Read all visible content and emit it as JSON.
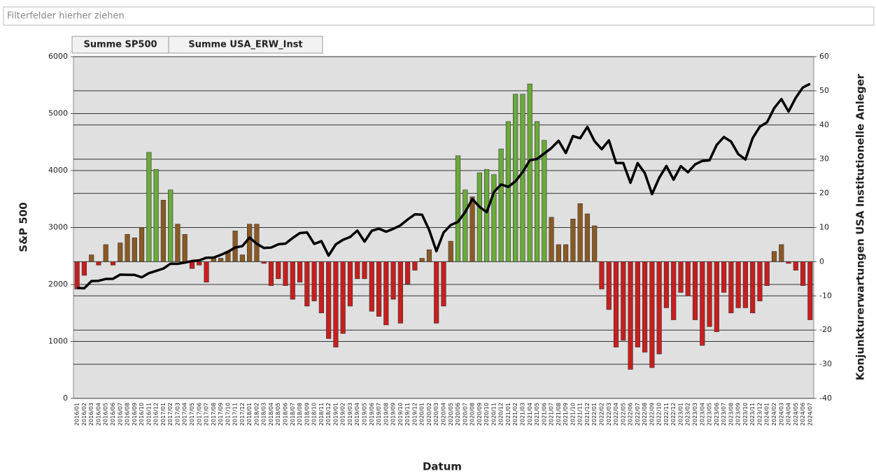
{
  "filter_label": "Filterfelder hierher ziehen",
  "chart_data": {
    "type": "bar_line",
    "field_buttons": [
      "Summe SP500",
      "Summe USA_ERW_Inst"
    ],
    "xlabel": "Datum",
    "ylabel": "S&P 500",
    "y2label": "Konjunkturerwartungen USA Institutionelle Anleger",
    "categories": [
      "2016/01",
      "2016/02",
      "2016/03",
      "2016/04",
      "2016/05",
      "2016/06",
      "2016/07",
      "2016/08",
      "2016/09",
      "2016/10",
      "2016/11",
      "2016/12",
      "2017/01",
      "2017/02",
      "2017/03",
      "2017/04",
      "2017/05",
      "2017/06",
      "2017/07",
      "2017/08",
      "2017/09",
      "2017/10",
      "2017/11",
      "2017/12",
      "2018/01",
      "2018/02",
      "2018/03",
      "2018/04",
      "2018/05",
      "2018/06",
      "2018/07",
      "2018/08",
      "2018/09",
      "2018/10",
      "2018/11",
      "2018/12",
      "2019/01",
      "2019/02",
      "2019/03",
      "2019/04",
      "2019/05",
      "2019/06",
      "2019/07",
      "2019/08",
      "2019/09",
      "2019/10",
      "2019/11",
      "2019/12",
      "2020/01",
      "2020/02",
      "2020/03",
      "2020/04",
      "2020/05",
      "2020/06",
      "2020/07",
      "2020/08",
      "2020/09",
      "2020/10",
      "2020/11",
      "2020/12",
      "2021/01",
      "2021/02",
      "2021/03",
      "2021/04",
      "2021/05",
      "2021/06",
      "2021/07",
      "2021/08",
      "2021/09",
      "2021/10",
      "2021/11",
      "2021/12",
      "2022/01",
      "2022/02",
      "2022/03",
      "2022/04",
      "2022/05",
      "2022/06",
      "2022/07",
      "2022/08",
      "2022/09",
      "2022/10",
      "2022/11",
      "2022/12",
      "2023/01",
      "2023/02",
      "2023/03",
      "2023/04",
      "2023/05",
      "2023/06",
      "2023/07",
      "2023/08",
      "2023/09",
      "2023/10",
      "2023/11",
      "2023/12",
      "2024/01",
      "2024/02",
      "2024/03",
      "2024/04",
      "2024/05",
      "2024/06",
      "2024/07"
    ],
    "series": [
      {
        "name": "Summe SP500",
        "type": "line",
        "color": "#000000",
        "values": [
          1940,
          1932,
          2060,
          2065,
          2097,
          2099,
          2174,
          2171,
          2168,
          2126,
          2199,
          2239,
          2279,
          2364,
          2363,
          2384,
          2412,
          2423,
          2470,
          2472,
          2519,
          2575,
          2648,
          2674,
          2824,
          2714,
          2641,
          2648,
          2705,
          2718,
          2816,
          2902,
          2914,
          2712,
          2760,
          2507,
          2704,
          2784,
          2834,
          2946,
          2752,
          2942,
          2980,
          2926,
          2977,
          3038,
          3141,
          3231,
          3226,
          2954,
          2585,
          2912,
          3044,
          3100,
          3271,
          3500,
          3363,
          3270,
          3622,
          3756,
          3714,
          3811,
          3973,
          4181,
          4204,
          4298,
          4395,
          4523,
          4308,
          4605,
          4567,
          4766,
          4516,
          4374,
          4530,
          4132,
          4132,
          3785,
          4130,
          3955,
          3586,
          3872,
          4080,
          3840,
          4077,
          3970,
          4109,
          4169,
          4180,
          4450,
          4589,
          4508,
          4288,
          4194,
          4568,
          4770,
          4846,
          5096,
          5254,
          5036,
          5278,
          5460,
          5522
        ]
      },
      {
        "name": "Summe USA_ERW_Inst",
        "type": "bar",
        "axis": "y2",
        "color": "#c81e1e",
        "values": [
          -8,
          -4,
          2,
          -1,
          5,
          -1,
          5.5,
          8,
          7,
          10,
          32,
          27,
          18,
          21,
          11,
          8,
          -2,
          -1,
          -6,
          1,
          1,
          3,
          9,
          2,
          11,
          11,
          -0.5,
          -7,
          -5,
          -7,
          -11,
          -6,
          -13,
          -11.5,
          -15,
          -22.5,
          -25,
          -21,
          -13,
          -5,
          -5,
          -14.5,
          -16,
          -18.5,
          -11,
          -18,
          -6.5,
          -2.5,
          1,
          3.5,
          -18,
          -13,
          6,
          31,
          21,
          19,
          26,
          27,
          25.5,
          33,
          41,
          49,
          49,
          52,
          41,
          35.5,
          13,
          5,
          5,
          12.5,
          17,
          14,
          10.5,
          -8,
          -14,
          -25,
          -23,
          -31.5,
          -25,
          -26.5,
          -31,
          -27,
          -13.5,
          -17,
          -9,
          -10,
          -17,
          -24.5,
          -19,
          -20.5,
          -9,
          -15,
          -13.5,
          -13.5,
          -15,
          -11.5,
          -7,
          3,
          5,
          -0.5,
          -2.5,
          -7,
          -17
        ]
      }
    ],
    "ylim": [
      0,
      6000
    ],
    "yticks": [
      0,
      1000,
      2000,
      3000,
      4000,
      5000,
      6000
    ],
    "y2lim": [
      -40,
      60
    ],
    "y2ticks": [
      -40,
      -30,
      -20,
      -10,
      0,
      10,
      20,
      30,
      40,
      50,
      60
    ],
    "grid": true
  }
}
